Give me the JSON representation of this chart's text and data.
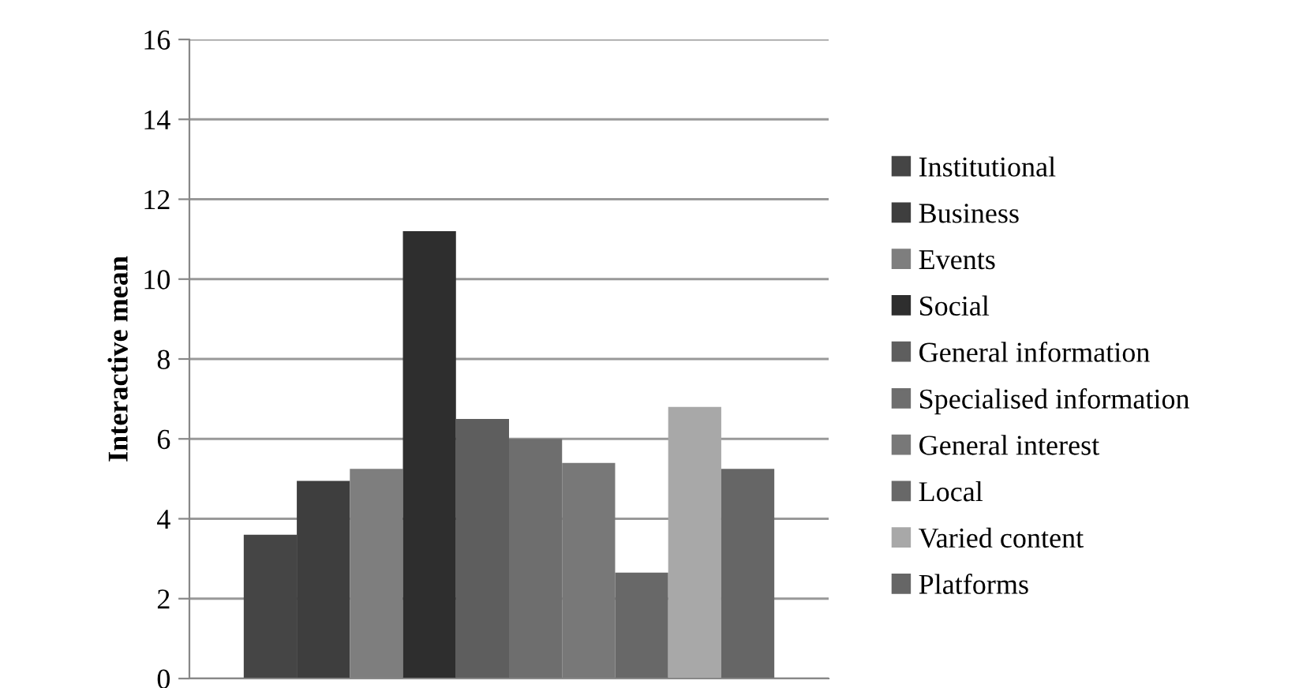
{
  "chart_data": {
    "type": "bar",
    "ylabel": "Interactive mean",
    "categories": [
      null
    ],
    "series": [
      {
        "name": "Institutional",
        "color": "#454545",
        "values": [
          3.6
        ]
      },
      {
        "name": "Business",
        "color": "#3e3e3e",
        "values": [
          4.95
        ]
      },
      {
        "name": "Events",
        "color": "#7e7e7e",
        "values": [
          5.25
        ]
      },
      {
        "name": "Social",
        "color": "#2e2e2e",
        "values": [
          11.2
        ]
      },
      {
        "name": "General information",
        "color": "#5e5e5e",
        "values": [
          6.5
        ]
      },
      {
        "name": "Specialised information",
        "color": "#6e6e6e",
        "values": [
          6.0
        ]
      },
      {
        "name": "General interest",
        "color": "#787878",
        "values": [
          5.4
        ]
      },
      {
        "name": "Local",
        "color": "#686868",
        "values": [
          2.65
        ]
      },
      {
        "name": "Varied content",
        "color": "#a8a8a8",
        "values": [
          6.8
        ]
      },
      {
        "name": "Platforms",
        "color": "#666666",
        "values": [
          5.25
        ]
      }
    ],
    "ylim": [
      0,
      16
    ],
    "yticks": [
      0,
      2,
      4,
      6,
      8,
      10,
      12,
      14,
      16
    ],
    "grid": "y",
    "legend": "right"
  }
}
